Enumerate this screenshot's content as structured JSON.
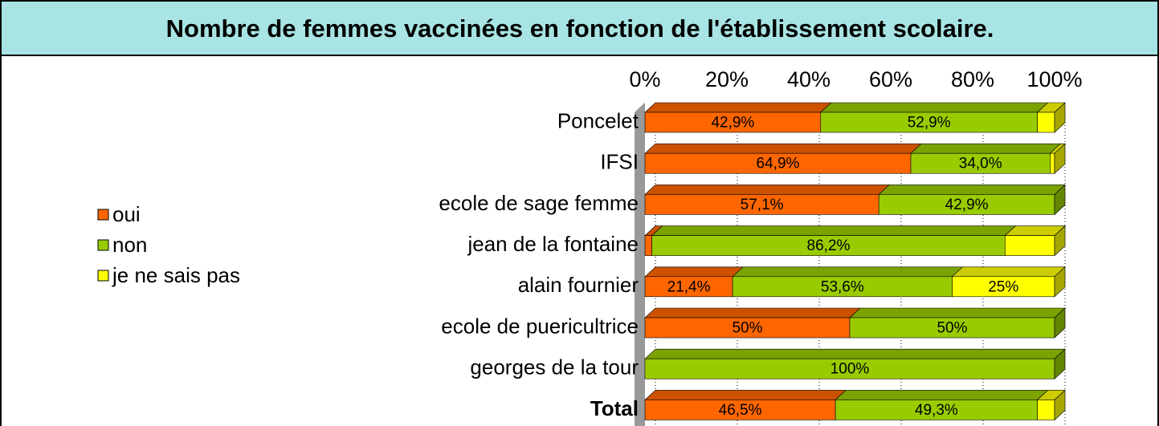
{
  "chart_data": {
    "type": "stacked_bar_horizontal",
    "title": "Nombre de femmes vaccinées en fonction de l'établissement scolaire.",
    "categories": [
      "Poncelet",
      "IFSI",
      "ecole de sage femme",
      "jean de la fontaine",
      "alain fournier",
      "ecole de puericultrice",
      "georges de la tour",
      "Total"
    ],
    "series": [
      {
        "name": "oui",
        "color": "#ff6600",
        "values": [
          42.9,
          64.9,
          57.1,
          1.7,
          21.4,
          50,
          0,
          46.5
        ],
        "value_labels": [
          "42,9%",
          "64,9%",
          "57,1%",
          null,
          "21,4%",
          "50%",
          null,
          "46,5%"
        ]
      },
      {
        "name": "non",
        "color": "#99cc00",
        "values": [
          52.9,
          34.0,
          42.9,
          86.2,
          53.6,
          50,
          100,
          49.3
        ],
        "value_labels": [
          "52,9%",
          "34,0%",
          "42,9%",
          "86,2%",
          "53,6%",
          "50%",
          "100%",
          "49,3%"
        ]
      },
      {
        "name": "je ne sais pas",
        "color": "#ffff00",
        "values": [
          4.2,
          1.1,
          0,
          12.1,
          25,
          0,
          0,
          4.2
        ],
        "value_labels": [
          null,
          null,
          null,
          null,
          "25%",
          null,
          null,
          null
        ]
      }
    ],
    "xlim": [
      0,
      100
    ],
    "xticks": [
      {
        "value": 0,
        "label": "0%"
      },
      {
        "value": 20,
        "label": "20%"
      },
      {
        "value": 40,
        "label": "40%"
      },
      {
        "value": 60,
        "label": "60%"
      },
      {
        "value": 80,
        "label": "80%"
      },
      {
        "value": 100,
        "label": "100%"
      }
    ],
    "grid": true,
    "legend": "left"
  }
}
